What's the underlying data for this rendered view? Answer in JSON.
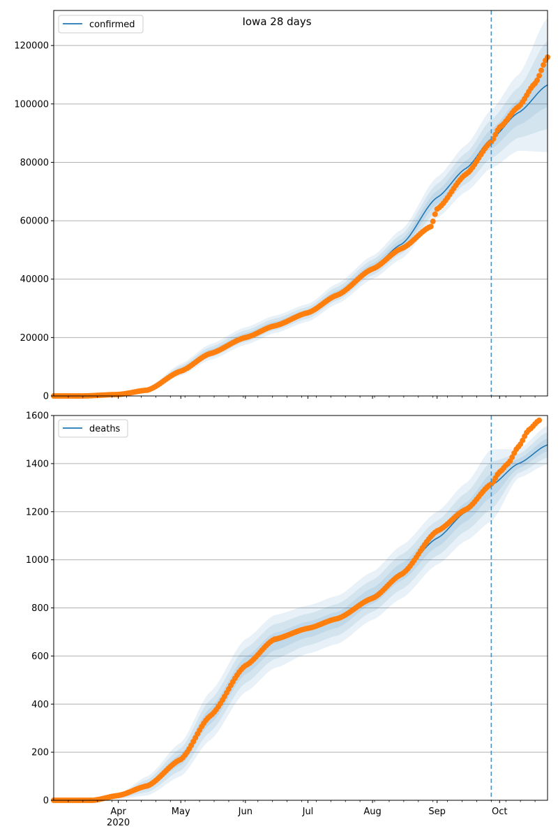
{
  "figure": {
    "title": "Iowa 28 days"
  },
  "colors": {
    "model_line": "#1f77b4",
    "band": "#1f77b4",
    "observed_points": "#ff7f0e",
    "forecast_marker": "#4a90c2",
    "grid": "#b0b0b0",
    "axes": "#000000"
  },
  "x_axis": {
    "range": [
      "2020-03-01",
      "2020-10-24"
    ],
    "month_ticks": [
      {
        "date": "2020-04-01",
        "label": "Apr"
      },
      {
        "date": "2020-05-01",
        "label": "May"
      },
      {
        "date": "2020-06-01",
        "label": "Jun"
      },
      {
        "date": "2020-07-01",
        "label": "Jul"
      },
      {
        "date": "2020-08-01",
        "label": "Aug"
      },
      {
        "date": "2020-09-01",
        "label": "Sep"
      },
      {
        "date": "2020-10-01",
        "label": "Oct"
      }
    ],
    "year_label": "2020",
    "forecast_start": "2020-09-27"
  },
  "chart_data": [
    {
      "type": "line",
      "legend": "confirmed",
      "legend_position": "top-left",
      "grid": "horizontal",
      "ylim": [
        0,
        132000
      ],
      "yticks": [
        0,
        20000,
        40000,
        60000,
        80000,
        100000,
        120000
      ],
      "model": {
        "dates": [
          "2020-03-01",
          "2020-03-15",
          "2020-04-01",
          "2020-04-15",
          "2020-05-01",
          "2020-05-15",
          "2020-06-01",
          "2020-06-15",
          "2020-07-01",
          "2020-07-15",
          "2020-08-01",
          "2020-08-15",
          "2020-09-01",
          "2020-09-15",
          "2020-09-27",
          "2020-10-10",
          "2020-10-24"
        ],
        "values": [
          0,
          100,
          600,
          2000,
          9000,
          15000,
          20500,
          24500,
          28500,
          35000,
          44000,
          52000,
          68000,
          78000,
          88000,
          97000,
          106500
        ],
        "band_half_widths": [
          0,
          50,
          200,
          700,
          2000,
          2700,
          3000,
          3000,
          3000,
          3500,
          4000,
          5000,
          7000,
          8000,
          10000,
          13000,
          23000
        ]
      },
      "observed": {
        "dates": [
          "2020-03-01",
          "2020-03-15",
          "2020-04-01",
          "2020-04-15",
          "2020-05-01",
          "2020-05-15",
          "2020-06-01",
          "2020-06-15",
          "2020-07-01",
          "2020-07-15",
          "2020-08-01",
          "2020-08-15",
          "2020-08-29",
          "2020-09-01",
          "2020-09-15",
          "2020-09-27",
          "2020-10-01",
          "2020-10-10",
          "2020-10-18",
          "2020-10-24"
        ],
        "values": [
          0,
          0,
          500,
          2000,
          8500,
          14500,
          20000,
          24000,
          28500,
          34500,
          43500,
          50500,
          58000,
          64000,
          76000,
          87000,
          92000,
          99000,
          107000,
          116000
        ]
      }
    },
    {
      "type": "line",
      "legend": "deaths",
      "legend_position": "top-left",
      "grid": "horizontal",
      "ylim": [
        0,
        1600
      ],
      "yticks": [
        0,
        200,
        400,
        600,
        800,
        1000,
        1200,
        1400,
        1600
      ],
      "model": {
        "dates": [
          "2020-03-01",
          "2020-03-20",
          "2020-04-01",
          "2020-04-15",
          "2020-05-01",
          "2020-05-15",
          "2020-06-01",
          "2020-06-15",
          "2020-07-01",
          "2020-07-15",
          "2020-08-01",
          "2020-08-15",
          "2020-09-01",
          "2020-09-15",
          "2020-09-27",
          "2020-10-10",
          "2020-10-24"
        ],
        "values": [
          0,
          2,
          15,
          60,
          170,
          350,
          560,
          660,
          710,
          750,
          850,
          950,
          1090,
          1200,
          1310,
          1400,
          1478
        ],
        "band_half_widths": [
          0,
          2,
          10,
          40,
          70,
          100,
          110,
          110,
          100,
          100,
          100,
          110,
          110,
          120,
          150,
          60,
          80
        ]
      },
      "observed": {
        "dates": [
          "2020-03-01",
          "2020-03-20",
          "2020-04-01",
          "2020-04-15",
          "2020-05-01",
          "2020-05-15",
          "2020-06-01",
          "2020-06-15",
          "2020-07-01",
          "2020-07-15",
          "2020-08-01",
          "2020-08-15",
          "2020-09-01",
          "2020-09-15",
          "2020-09-27",
          "2020-10-01",
          "2020-10-05",
          "2020-10-10",
          "2020-10-15",
          "2020-10-20"
        ],
        "values": [
          0,
          0,
          20,
          60,
          170,
          350,
          560,
          670,
          715,
          755,
          840,
          940,
          1120,
          1210,
          1315,
          1365,
          1400,
          1470,
          1540,
          1580
        ]
      }
    }
  ]
}
